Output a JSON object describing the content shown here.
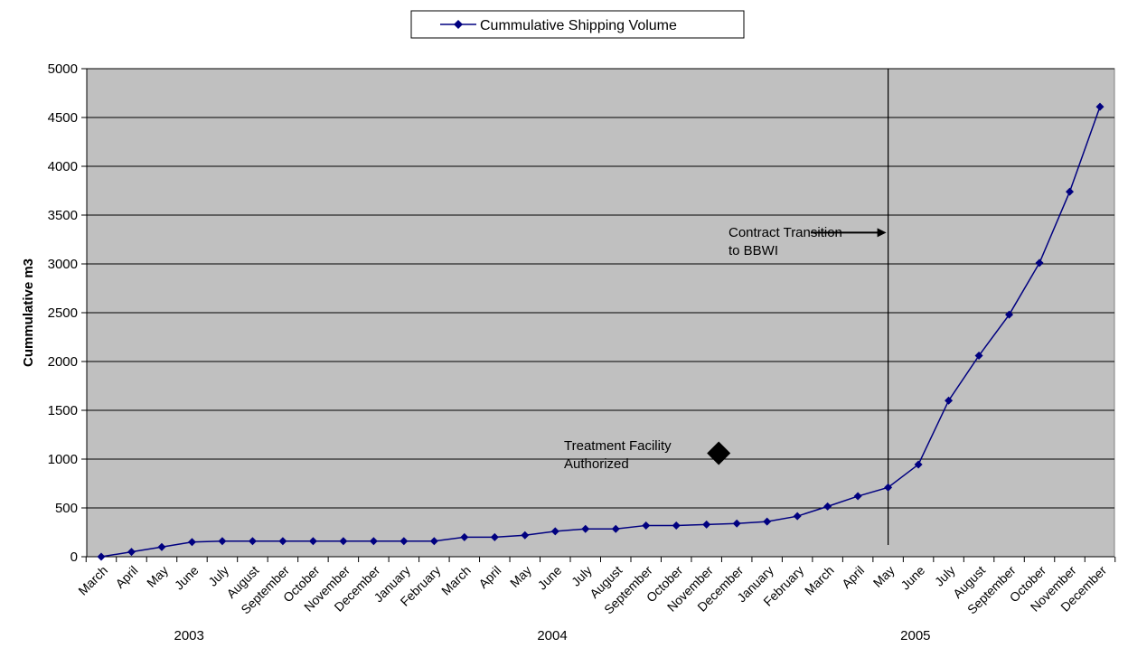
{
  "chart_data": {
    "type": "line",
    "title": "",
    "ylabel": "Cummulative m3",
    "xlabel": "",
    "ylim": [
      0,
      5000
    ],
    "yticks": [
      0,
      500,
      1000,
      1500,
      2000,
      2500,
      3000,
      3500,
      4000,
      4500,
      5000
    ],
    "grid": true,
    "legend": "top-center",
    "categories": [
      "March",
      "April",
      "May",
      "June",
      "July",
      "August",
      "September",
      "October",
      "November",
      "December",
      "January",
      "February",
      "March",
      "April",
      "May",
      "June",
      "July",
      "August",
      "September",
      "October",
      "November",
      "December",
      "January",
      "February",
      "March",
      "April",
      "May",
      "June",
      "July",
      "August",
      "September",
      "October",
      "November",
      "December"
    ],
    "year_labels": [
      {
        "label": "2003",
        "category_index": 3.5
      },
      {
        "label": "2004",
        "category_index": 15.5
      },
      {
        "label": "2005",
        "category_index": 27.5
      }
    ],
    "series": [
      {
        "name": "Cummulative Shipping Volume",
        "color": "#000080",
        "values": [
          0,
          50,
          100,
          150,
          160,
          160,
          160,
          160,
          160,
          160,
          160,
          160,
          200,
          200,
          220,
          260,
          285,
          285,
          320,
          320,
          330,
          340,
          360,
          415,
          515,
          620,
          710,
          945,
          1600,
          2060,
          2480,
          3010,
          3740,
          4610
        ]
      }
    ],
    "annotations": [
      {
        "id": "contract-transition",
        "lines": [
          "Contract Transition",
          "to BBWI"
        ],
        "vertical_line_at_category": 26,
        "vertical_line_top": 5000,
        "vertical_line_bottom": 120,
        "arrow_y": 3200
      },
      {
        "id": "treatment-facility",
        "lines": [
          "Treatment Facility",
          "Authorized"
        ],
        "marker_category": 21,
        "marker_value": 1060
      }
    ],
    "plot_background": "#c0c0c0"
  }
}
